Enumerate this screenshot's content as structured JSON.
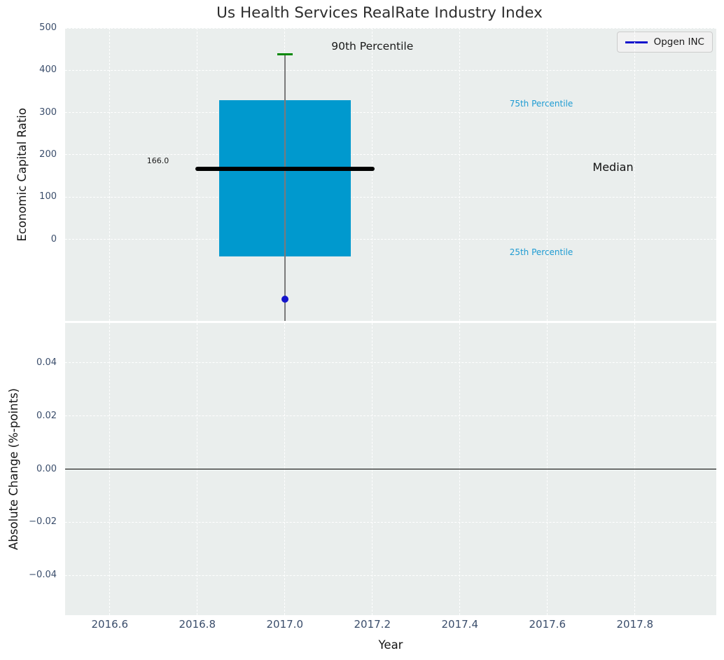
{
  "title": "Us Health Services RealRate Industry Index",
  "legend": {
    "label": "Opgen INC",
    "line_color": "#1414cc"
  },
  "colors": {
    "figure_bg": "#ffffff",
    "plot_bg": "#eaeeed",
    "grid": "#ffffff",
    "tick_label": "#3a4d6b",
    "box_fill": "#0099ce",
    "median_line": "#000000",
    "whisker": "#7a7a7a",
    "cap_90th": "#068806",
    "company_point": "#1414cc",
    "percentile_label": "#1e9bd2",
    "zero_line": "#000000"
  },
  "chart_data": {
    "type": "boxplot",
    "title": "Us Health Services RealRate Industry Index",
    "xlabel": "Year",
    "xlim": [
      2016.498,
      2017.986
    ],
    "x_tick_values": [
      2016.6,
      2016.8,
      2017.0,
      2017.2,
      2017.4,
      2017.6,
      2017.8
    ],
    "x_tick_labels": [
      "2016.6",
      "2016.8",
      "2017.0",
      "2017.2",
      "2017.4",
      "2017.6",
      "2017.8"
    ],
    "top_panel": {
      "ylabel": "Economic Capital Ratio",
      "ylim": [
        -193,
        500
      ],
      "y_tick_values": [
        500,
        400,
        300,
        200,
        100,
        0
      ],
      "y_tick_labels": [
        "500",
        "400",
        "300",
        "200",
        "100",
        "0"
      ],
      "grid": true,
      "box": {
        "center_x": 2017.0,
        "box_left": 2016.85,
        "box_right": 2017.15,
        "median_left": 2016.795,
        "median_right": 2017.205,
        "cap_left": 2016.982,
        "cap_right": 2017.018,
        "p90": 438,
        "p75": 330,
        "median": 166.0,
        "p25": -41,
        "whisker_bottom": -193,
        "median_label": "166.0",
        "median_label_x": 2016.71,
        "median_label_y": 185
      },
      "company_point": {
        "name": "Opgen INC",
        "x": 2017.0,
        "y": -142
      },
      "annotations": [
        {
          "text": "90th Percentile",
          "x": 2017.2,
          "y": 454,
          "size": 15.5,
          "color": "#1a1a1a"
        },
        {
          "text": "75th Percentile",
          "x": 2017.586,
          "y": 318,
          "size": 12,
          "color": "#1e9bd2"
        },
        {
          "text": "Median",
          "x": 2017.75,
          "y": 168,
          "size": 16,
          "color": "#111111"
        },
        {
          "text": "25th Percentile",
          "x": 2017.586,
          "y": -34,
          "size": 12,
          "color": "#1e9bd2"
        }
      ]
    },
    "bottom_panel": {
      "ylabel": "Absolute Change (%-points)",
      "ylim": [
        -0.055,
        0.055
      ],
      "y_tick_values": [
        0.04,
        0.02,
        0,
        -0.02,
        -0.04
      ],
      "y_tick_labels": [
        "0.04",
        "0.02",
        "0.00",
        "−0.02",
        "−0.04"
      ],
      "zero_line_y": 0.0,
      "grid": true
    }
  }
}
